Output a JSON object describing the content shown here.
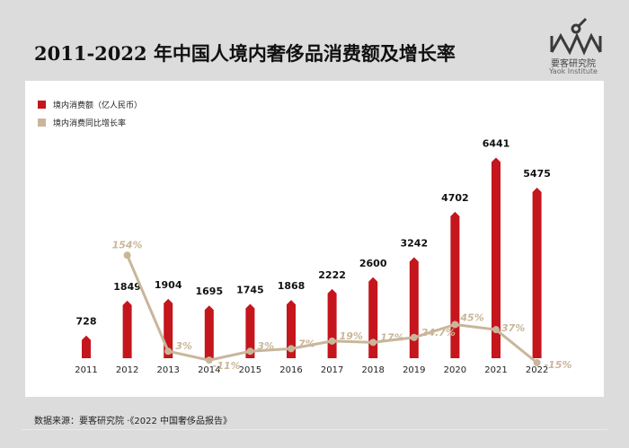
{
  "title": "2011-2022 年中国人境内奢侈品消费额及增长率",
  "logo": {
    "name_cn": "要客研究院",
    "name_en": "Yaok Institute"
  },
  "source": "数据来源：要客研究院 ·《2022 中国奢侈品报告》",
  "colors": {
    "bar": "#c4161c",
    "line": "#c9b69a"
  },
  "chart_data": {
    "type": "bar",
    "categories": [
      "2011",
      "2012",
      "2013",
      "2014",
      "2015",
      "2016",
      "2017",
      "2018",
      "2019",
      "2020",
      "2021",
      "2022"
    ],
    "series": [
      {
        "name": "境内消费额（亿人民币）",
        "type": "bar",
        "values": [
          728,
          1849,
          1904,
          1695,
          1745,
          1868,
          2222,
          2600,
          3242,
          4702,
          6441,
          5475
        ],
        "labels": [
          "728",
          "1849",
          "1904",
          "1695",
          "1745",
          "1868",
          "2222",
          "2600",
          "3242",
          "4702",
          "6441",
          "5475"
        ]
      },
      {
        "name": "境内消费同比增长率",
        "type": "line",
        "values": [
          null,
          154,
          3,
          -11,
          3,
          7,
          19,
          17,
          24.7,
          45,
          37,
          -15
        ],
        "labels": [
          "",
          "154%",
          "3%",
          "-11%",
          "3%",
          "7%",
          "19%",
          "17%",
          "24.7%",
          "45%",
          "37%",
          "-15%"
        ]
      }
    ],
    "bar_ylim": [
      0,
      6600
    ],
    "line_ylim": [
      -15,
      160
    ]
  }
}
